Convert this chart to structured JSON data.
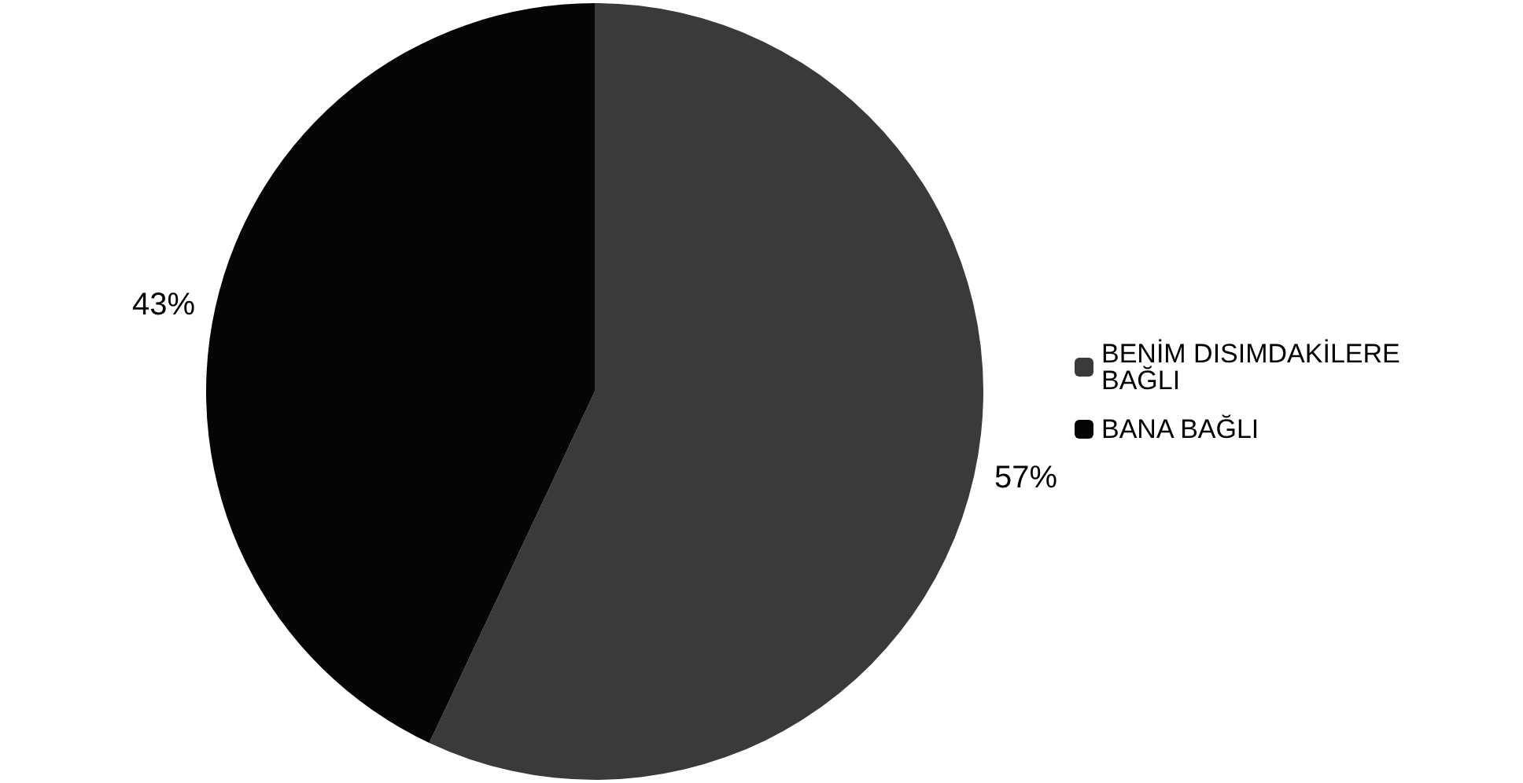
{
  "chart_data": {
    "type": "pie",
    "categories": [
      "BENİM DISIMDAKİLERE BAĞLI",
      "BANA BAĞLI"
    ],
    "values": [
      57,
      43
    ],
    "colors": [
      "#3a3a3a",
      "#050505"
    ],
    "value_labels": [
      "57%",
      "43%"
    ],
    "legend": "right"
  }
}
